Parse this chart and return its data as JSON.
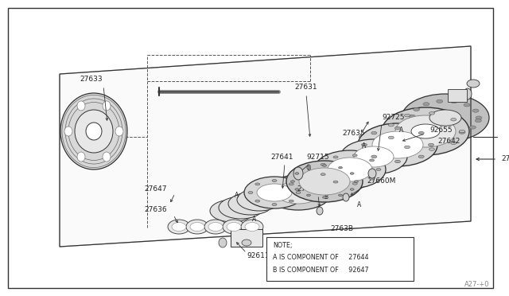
{
  "bg_color": "#ffffff",
  "line_color": "#333333",
  "text_color": "#222222",
  "fig_width": 6.4,
  "fig_height": 3.72,
  "dpi": 100,
  "watermark": "A27-+0",
  "note_lines": [
    "NOTE;",
    "A IS COMPONENT OF     27644",
    "B IS COMPONENT OF     92647"
  ]
}
